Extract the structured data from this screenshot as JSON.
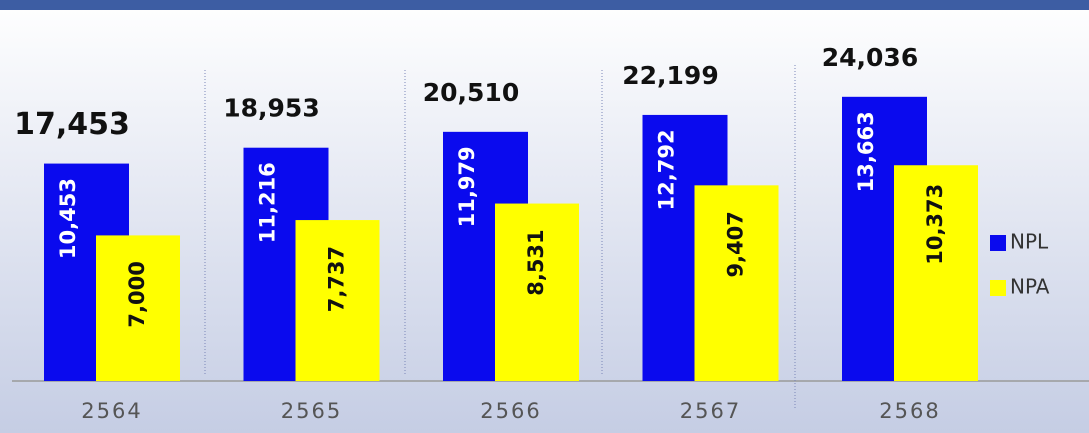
{
  "chart_data": {
    "type": "bar",
    "categories": [
      "2564",
      "2565",
      "2566",
      "2567",
      "2568"
    ],
    "series": [
      {
        "name": "NPL",
        "color": "#0a0aee",
        "values": [
          10453,
          11216,
          11979,
          12792,
          13663
        ],
        "value_labels": [
          "10,453",
          "11,216",
          "11,979",
          "12,792",
          "13,663"
        ]
      },
      {
        "name": "NPA",
        "color": "#ffff00",
        "values": [
          7000,
          7737,
          8531,
          9407,
          10373
        ],
        "value_labels": [
          "7,000",
          "7,737",
          "8,531",
          "9,407",
          "10,373"
        ]
      }
    ],
    "totals": [
      17453,
      18953,
      20510,
      22199,
      24036
    ],
    "total_labels": [
      "17,453",
      "18,953",
      "20,510",
      "22,199",
      "24,036"
    ],
    "legend": "right"
  }
}
